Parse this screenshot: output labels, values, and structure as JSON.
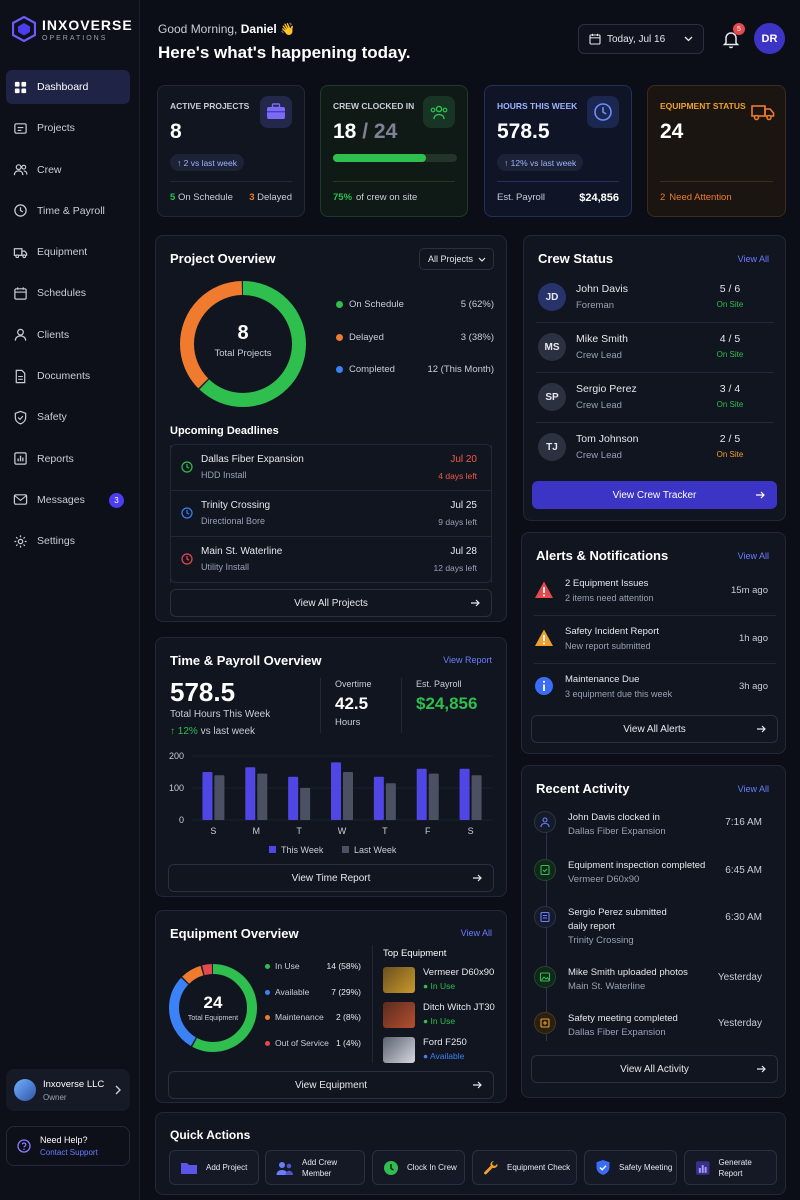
{
  "brand": {
    "name": "INXOVERSE",
    "sub": "OPERATIONS"
  },
  "nav": [
    {
      "label": "Dashboard",
      "icon": "dashboard-icon",
      "active": true
    },
    {
      "label": "Projects",
      "icon": "projects-icon"
    },
    {
      "label": "Crew",
      "icon": "crew-icon"
    },
    {
      "label": "Time & Payroll",
      "icon": "clock-icon"
    },
    {
      "label": "Equipment",
      "icon": "truck-icon"
    },
    {
      "label": "Schedules",
      "icon": "calendar-icon"
    },
    {
      "label": "Clients",
      "icon": "user-icon"
    },
    {
      "label": "Documents",
      "icon": "document-icon"
    },
    {
      "label": "Safety",
      "icon": "shield-icon"
    },
    {
      "label": "Reports",
      "icon": "reports-icon"
    },
    {
      "label": "Messages",
      "icon": "mail-icon",
      "badge": "3"
    },
    {
      "label": "Settings",
      "icon": "gear-icon"
    }
  ],
  "org": {
    "name": "Inxoverse LLC",
    "role": "Owner"
  },
  "help": {
    "title": "Need Help?",
    "link": "Contact Support"
  },
  "header": {
    "greeting": "Good Morning,",
    "user": "Daniel",
    "wave": "👋",
    "headline": "Here's what's happening today.",
    "date": "Today, Jul 16",
    "notifications": "5",
    "avatar": "DR"
  },
  "stats": {
    "active": {
      "label": "ACTIVE PROJECTS",
      "value": "8",
      "trend": "↑ 2 vs last week",
      "on_schedule_n": "5",
      "on_schedule": "On Schedule",
      "delayed_n": "3",
      "delayed": "Delayed"
    },
    "crew": {
      "label": "CREW CLOCKED IN",
      "value": "18",
      "sep": "/",
      "total": "24",
      "progress": 0.75,
      "pct": "75%",
      "foot": "of crew on site"
    },
    "hours": {
      "label": "HOURS THIS WEEK",
      "value": "578.5",
      "trend": "↑ 12% vs last week",
      "payroll_label": "Est. Payroll",
      "payroll": "$24,856"
    },
    "equip": {
      "label": "EQUIPMENT STATUS",
      "value": "24",
      "attn_n": "2",
      "attn": "Need Attention"
    }
  },
  "project_overview": {
    "title": "Project Overview",
    "filter": "All Projects",
    "total": "8",
    "total_label": "Total Projects",
    "legend": [
      {
        "label": "On Schedule",
        "value": "5 (62%)",
        "color": "#2fbf4f"
      },
      {
        "label": "Delayed",
        "value": "3 (38%)",
        "color": "#f07b2e"
      },
      {
        "label": "Completed",
        "value": "12 (This Month)",
        "color": "#3b82f6"
      }
    ],
    "deadlines_title": "Upcoming Deadlines",
    "deadlines": [
      {
        "name": "Dallas Fiber Expansion",
        "sub": "HDD Install",
        "date": "Jul 20",
        "left": "4 days left",
        "color": "#2fbf4f",
        "urgent": true
      },
      {
        "name": "Trinity Crossing",
        "sub": "Directional Bore",
        "date": "Jul 25",
        "left": "9 days left",
        "color": "#3b82f6"
      },
      {
        "name": "Main St. Waterline",
        "sub": "Utility Install",
        "date": "Jul 28",
        "left": "12 days left",
        "color": "#e5484d"
      }
    ],
    "button": "View All Projects"
  },
  "crew_status": {
    "title": "Crew Status",
    "view_all": "View All",
    "members": [
      {
        "initials": "JD",
        "name": "John Davis",
        "role": "Foreman",
        "count": "5 / 6",
        "status": "On Site",
        "highlight": true
      },
      {
        "initials": "MS",
        "name": "Mike Smith",
        "role": "Crew Lead",
        "count": "4 / 5",
        "status": "On Site"
      },
      {
        "initials": "SP",
        "name": "Sergio Perez",
        "role": "Crew Lead",
        "count": "3 / 4",
        "status": "On Site"
      },
      {
        "initials": "TJ",
        "name": "Tom Johnson",
        "role": "Crew Lead",
        "count": "2 / 5",
        "status": "On Site",
        "warn": true
      }
    ],
    "button": "View Crew Tracker"
  },
  "alerts": {
    "title": "Alerts & Notifications",
    "view_all": "View All",
    "items": [
      {
        "name": "2 Equipment Issues",
        "sub": "2 items need attention",
        "time": "15m ago",
        "icon": "warning-icon",
        "color": "#e5484d"
      },
      {
        "name": "Safety Incident Report",
        "sub": "New report submitted",
        "time": "1h ago",
        "icon": "warning-icon",
        "color": "#f0a02e"
      },
      {
        "name": "Maintenance Due",
        "sub": "3 equipment due this week",
        "time": "3h ago",
        "icon": "info-icon",
        "color": "#3b6cf6"
      }
    ],
    "button": "View All Alerts"
  },
  "time_payroll": {
    "title": "Time & Payroll Overview",
    "view_report": "View Report",
    "hours": "578.5",
    "hours_label": "Total Hours This Week",
    "trend_pct": "12%",
    "trend": "vs last week",
    "overtime_label": "Overtime",
    "overtime": "42.5",
    "overtime_unit": "Hours",
    "payroll_label": "Est. Payroll",
    "payroll": "$24,856",
    "button": "View Time Report"
  },
  "chart_data": {
    "type": "bar",
    "categories": [
      "S",
      "M",
      "T",
      "W",
      "T",
      "F",
      "S"
    ],
    "series": [
      {
        "name": "This Week",
        "values": [
          150,
          165,
          135,
          180,
          135,
          160,
          160
        ],
        "color": "#4f46e5"
      },
      {
        "name": "Last Week",
        "values": [
          140,
          145,
          100,
          150,
          115,
          145,
          140
        ],
        "color": "#4b5163"
      }
    ],
    "yticks": [
      "0",
      "100",
      "200"
    ],
    "ylim": [
      0,
      200
    ]
  },
  "equipment": {
    "title": "Equipment Overview",
    "view_all": "View All",
    "total": "24",
    "total_label": "Total Equipment",
    "legend": [
      {
        "label": "In Use",
        "value": "14 (58%)",
        "color": "#2fbf4f",
        "n": 14
      },
      {
        "label": "Available",
        "value": "7 (29%)",
        "color": "#3b82f6",
        "n": 7
      },
      {
        "label": "Maintenance",
        "value": "2 (8%)",
        "color": "#f07b2e",
        "n": 2
      },
      {
        "label": "Out of Service",
        "value": "1 (4%)",
        "color": "#e5484d",
        "n": 1
      }
    ],
    "top_title": "Top Equipment",
    "top": [
      {
        "name": "Vermeer D60x90",
        "status": "In Use",
        "color": "#2fbf4f",
        "thumb": "#b8861c"
      },
      {
        "name": "Ditch Witch JT30",
        "status": "In Use",
        "color": "#2fbf4f",
        "thumb": "#a5432a"
      },
      {
        "name": "Ford F250",
        "status": "Available",
        "color": "#3b82f6",
        "thumb": "#c9ccd3"
      }
    ],
    "button": "View Equipment"
  },
  "activity": {
    "title": "Recent Activity",
    "view_all": "View All",
    "items": [
      {
        "name": "John Davis clocked in",
        "sub": "Dallas Fiber Expansion",
        "time": "7:16 AM",
        "icon": "people-icon",
        "color": "#6c7cff"
      },
      {
        "name": "Equipment inspection completed",
        "sub": "Vermeer D60x90",
        "time": "6:45 AM",
        "icon": "check-doc-icon",
        "color": "#2fbf4f"
      },
      {
        "name": "Sergio Perez submitted",
        "name2": "daily report",
        "sub": "Trinity Crossing",
        "time": "6:30 AM",
        "icon": "report-icon",
        "color": "#6c7cff"
      },
      {
        "name": "Mike Smith uploaded photos",
        "sub": "Main St. Waterline",
        "time": "Yesterday",
        "icon": "photo-icon",
        "color": "#2fbf4f"
      },
      {
        "name": "Safety meeting completed",
        "sub": "Dallas Fiber Expansion",
        "time": "Yesterday",
        "icon": "meeting-icon",
        "color": "#f0a02e"
      }
    ],
    "button": "View All Activity"
  },
  "quick_actions": {
    "title": "Quick Actions",
    "items": [
      {
        "label": "Add Project",
        "icon": "folder-icon",
        "color": "#6c7cff"
      },
      {
        "label": "Add Crew",
        "label2": "Member",
        "icon": "add-user-icon",
        "color": "#6c7cff"
      },
      {
        "label": "Clock In Crew",
        "icon": "clock-icon",
        "color": "#2fbf4f"
      },
      {
        "label": "Equipment Check",
        "icon": "wrench-icon",
        "color": "#f0a02e"
      },
      {
        "label": "Safety Meeting",
        "icon": "shield-icon",
        "color": "#3b82f6"
      },
      {
        "label": "Generate Report",
        "icon": "chart-icon",
        "color": "#8b7cff"
      }
    ]
  }
}
